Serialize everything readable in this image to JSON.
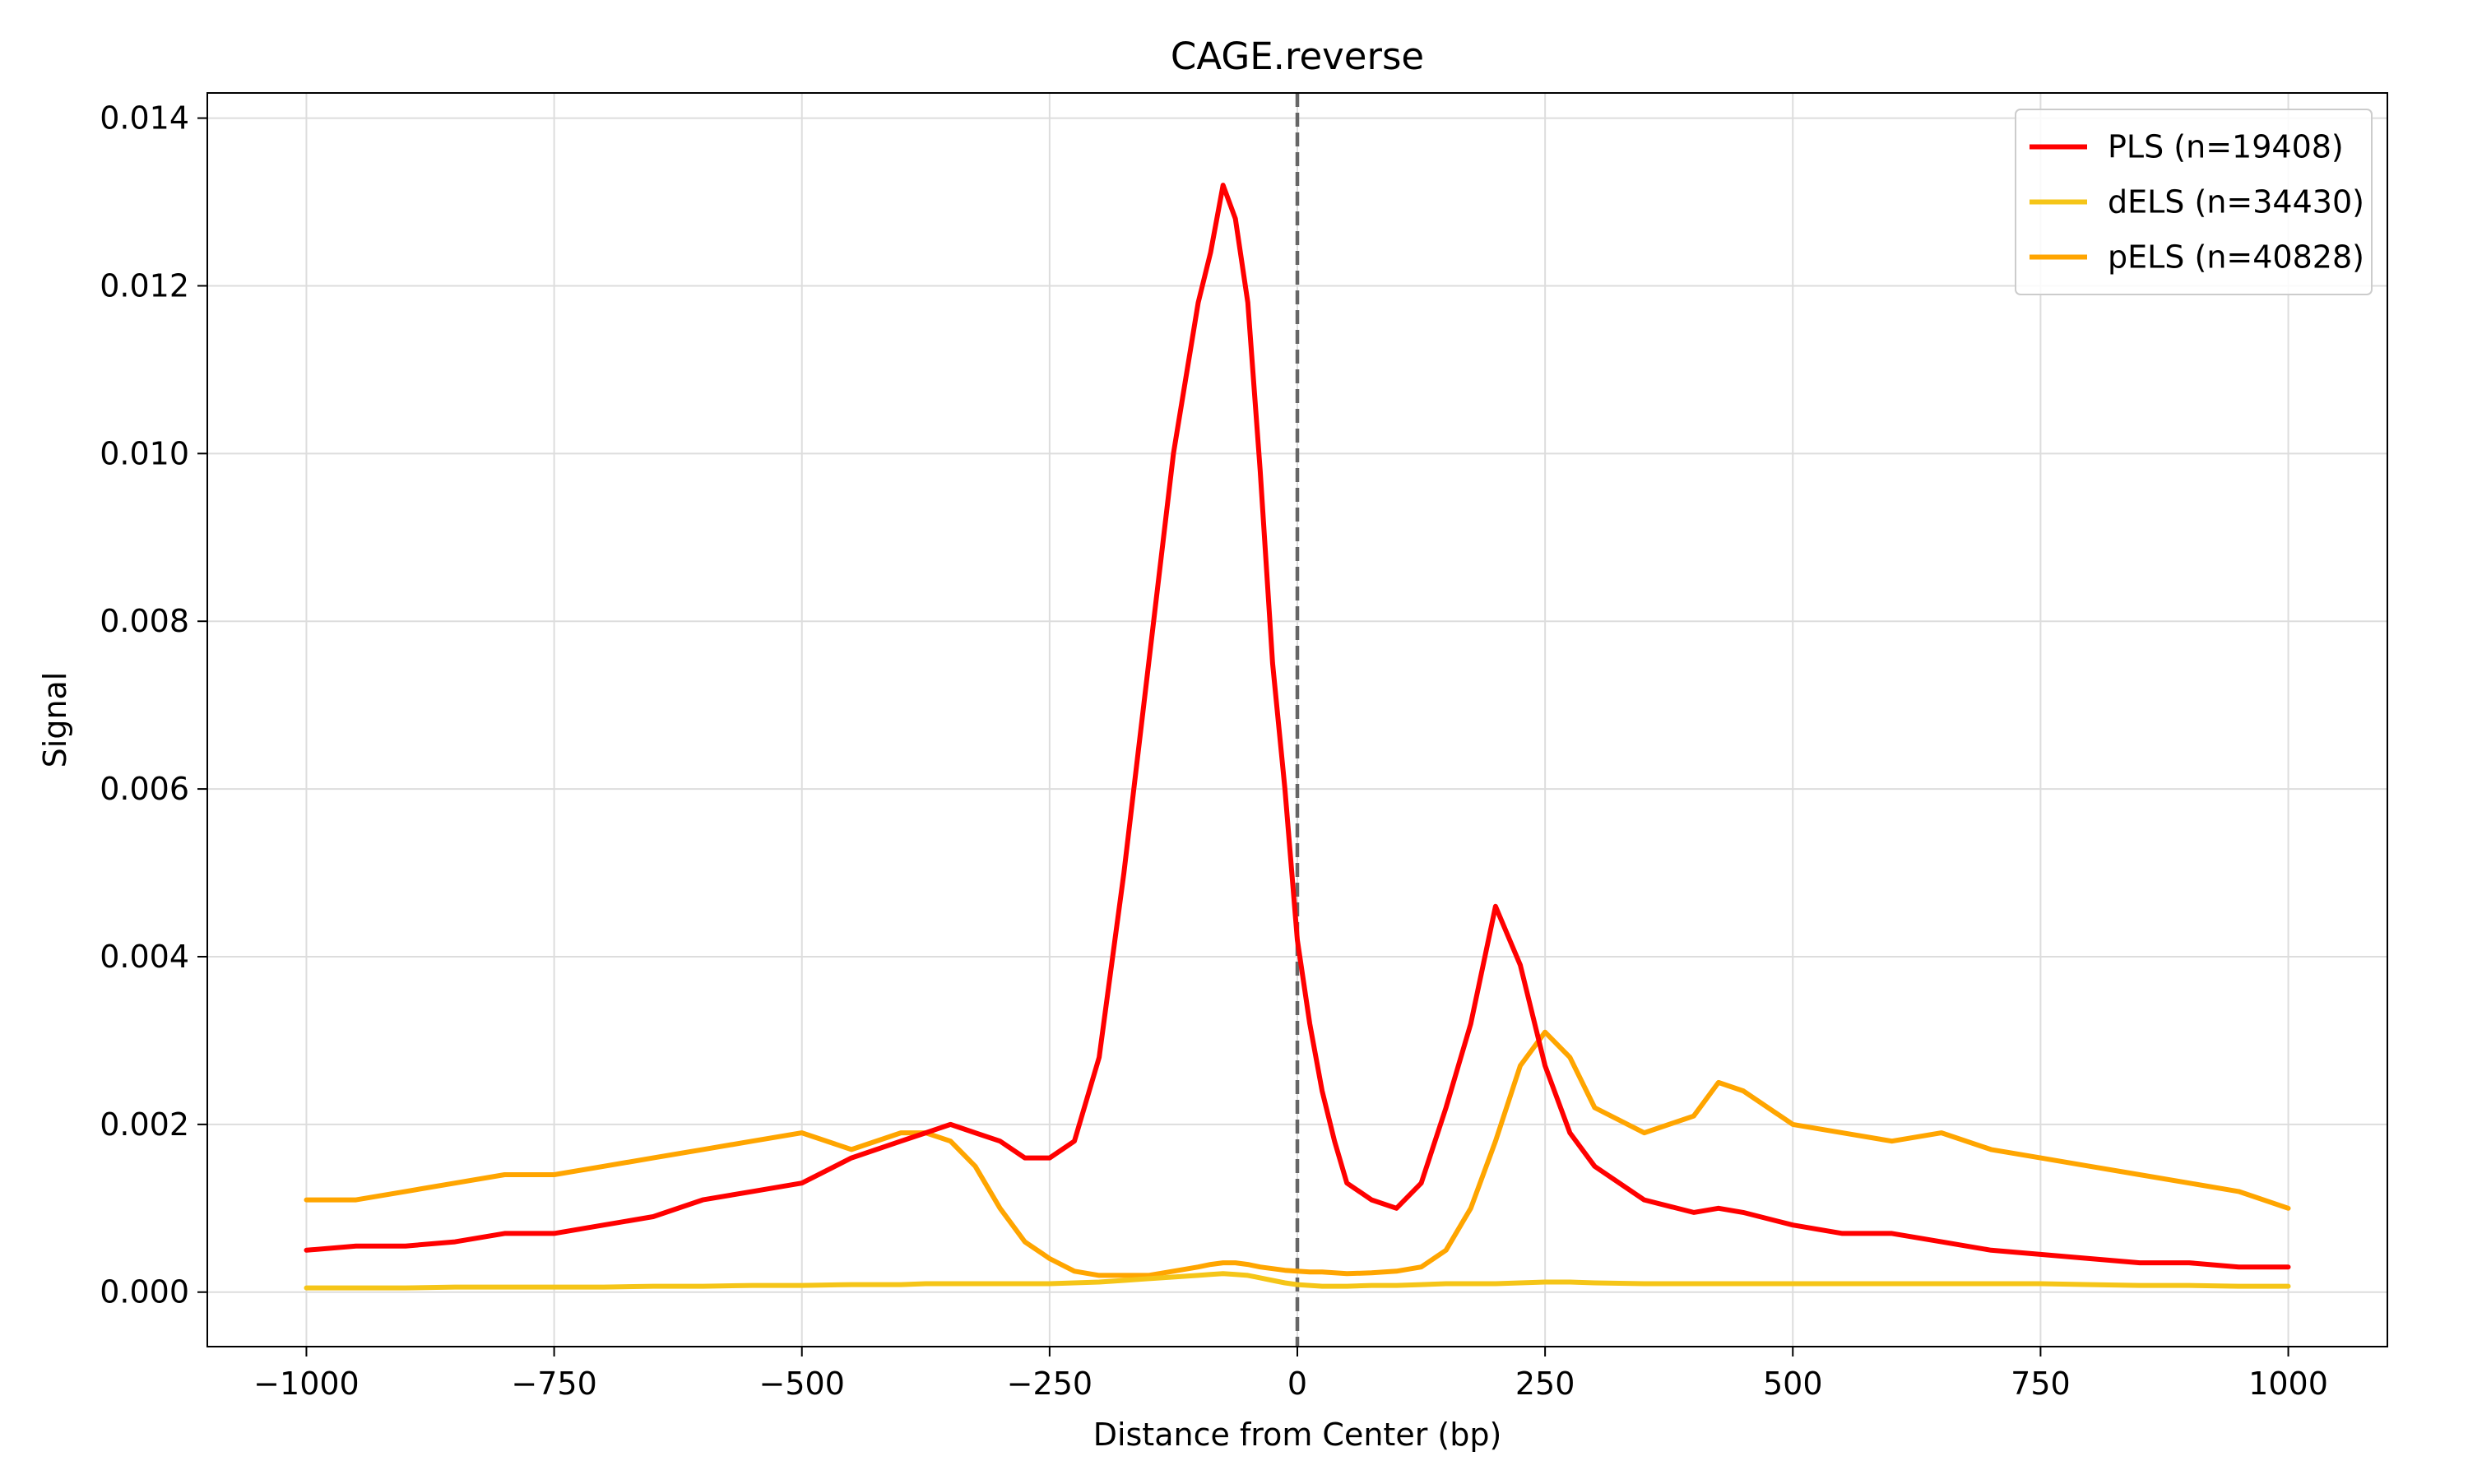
{
  "chart_data": {
    "type": "line",
    "title": "CAGE.reverse",
    "xlabel": "Distance from Center (bp)",
    "ylabel": "Signal",
    "xlim": [
      -1100,
      1100
    ],
    "ylim": [
      -0.00065,
      0.0143
    ],
    "x_ticks": [
      -1000,
      -750,
      -500,
      -250,
      0,
      250,
      500,
      750,
      1000
    ],
    "x_tick_labels": [
      "−1000",
      "−750",
      "−500",
      "−250",
      "0",
      "250",
      "500",
      "750",
      "1000"
    ],
    "y_ticks": [
      0.0,
      0.002,
      0.004,
      0.006,
      0.008,
      0.01,
      0.012,
      0.014
    ],
    "y_tick_labels": [
      "0.000",
      "0.002",
      "0.004",
      "0.006",
      "0.008",
      "0.010",
      "0.012",
      "0.014"
    ],
    "grid": true,
    "legend_position": "top-right",
    "reference_line": {
      "x": 0,
      "style": "dashed",
      "color": "#666666"
    },
    "x": [
      -1000,
      -950,
      -900,
      -850,
      -800,
      -750,
      -700,
      -650,
      -600,
      -550,
      -500,
      -450,
      -400,
      -375,
      -350,
      -325,
      -300,
      -275,
      -250,
      -225,
      -200,
      -175,
      -150,
      -125,
      -100,
      -87.5,
      -75,
      -62.5,
      -50,
      -37.5,
      -25,
      -12.5,
      0,
      12.5,
      25,
      37.5,
      50,
      75,
      100,
      125,
      150,
      175,
      200,
      225,
      250,
      275,
      300,
      350,
      400,
      425,
      450,
      500,
      550,
      600,
      650,
      700,
      750,
      800,
      850,
      900,
      950,
      1000
    ],
    "series": [
      {
        "name": "PLS (n=19408)",
        "color": "#ff0000",
        "values": [
          0.0005,
          0.00055,
          0.00055,
          0.0006,
          0.0007,
          0.0007,
          0.0008,
          0.0009,
          0.0011,
          0.0012,
          0.0013,
          0.0016,
          0.0018,
          0.0019,
          0.002,
          0.0019,
          0.0018,
          0.0016,
          0.0016,
          0.0018,
          0.0028,
          0.005,
          0.0075,
          0.01,
          0.0118,
          0.0124,
          0.0132,
          0.0128,
          0.0118,
          0.0098,
          0.0075,
          0.006,
          0.0042,
          0.0032,
          0.0024,
          0.0018,
          0.0013,
          0.0011,
          0.001,
          0.0013,
          0.0022,
          0.0032,
          0.0046,
          0.0039,
          0.0027,
          0.0019,
          0.0015,
          0.0011,
          0.00095,
          0.001,
          0.00095,
          0.0008,
          0.0007,
          0.0007,
          0.0006,
          0.0005,
          0.00045,
          0.0004,
          0.00035,
          0.00035,
          0.0003,
          0.0003
        ]
      },
      {
        "name": "dELS (n=34430)",
        "color": "#f5c518",
        "values": [
          5e-05,
          5e-05,
          5e-05,
          6e-05,
          6e-05,
          6e-05,
          6e-05,
          7e-05,
          7e-05,
          8e-05,
          8e-05,
          9e-05,
          9e-05,
          0.0001,
          0.0001,
          0.0001,
          0.0001,
          0.0001,
          0.0001,
          0.00011,
          0.00012,
          0.00014,
          0.00016,
          0.00018,
          0.0002,
          0.00021,
          0.00022,
          0.00021,
          0.0002,
          0.00017,
          0.00014,
          0.00011,
          9e-05,
          8e-05,
          7e-05,
          7e-05,
          7e-05,
          8e-05,
          8e-05,
          9e-05,
          0.0001,
          0.0001,
          0.0001,
          0.00011,
          0.00012,
          0.00012,
          0.00011,
          0.0001,
          0.0001,
          0.0001,
          0.0001,
          0.0001,
          0.0001,
          0.0001,
          0.0001,
          0.0001,
          0.0001,
          9e-05,
          8e-05,
          8e-05,
          7e-05,
          7e-05
        ]
      },
      {
        "name": "pELS (n=40828)",
        "color": "#ffa500",
        "values": [
          0.0011,
          0.0011,
          0.0012,
          0.0013,
          0.0014,
          0.0014,
          0.0015,
          0.0016,
          0.0017,
          0.0018,
          0.0019,
          0.0017,
          0.0019,
          0.0019,
          0.0018,
          0.0015,
          0.001,
          0.0006,
          0.0004,
          0.00025,
          0.0002,
          0.0002,
          0.0002,
          0.00025,
          0.0003,
          0.00033,
          0.00035,
          0.00035,
          0.00033,
          0.0003,
          0.00028,
          0.00026,
          0.00025,
          0.00024,
          0.00024,
          0.00023,
          0.00022,
          0.00023,
          0.00025,
          0.0003,
          0.0005,
          0.001,
          0.0018,
          0.0027,
          0.0031,
          0.0028,
          0.0022,
          0.0019,
          0.0021,
          0.0025,
          0.0024,
          0.002,
          0.0019,
          0.0018,
          0.0019,
          0.0017,
          0.0016,
          0.0015,
          0.0014,
          0.0013,
          0.0012,
          0.001
        ]
      }
    ]
  }
}
